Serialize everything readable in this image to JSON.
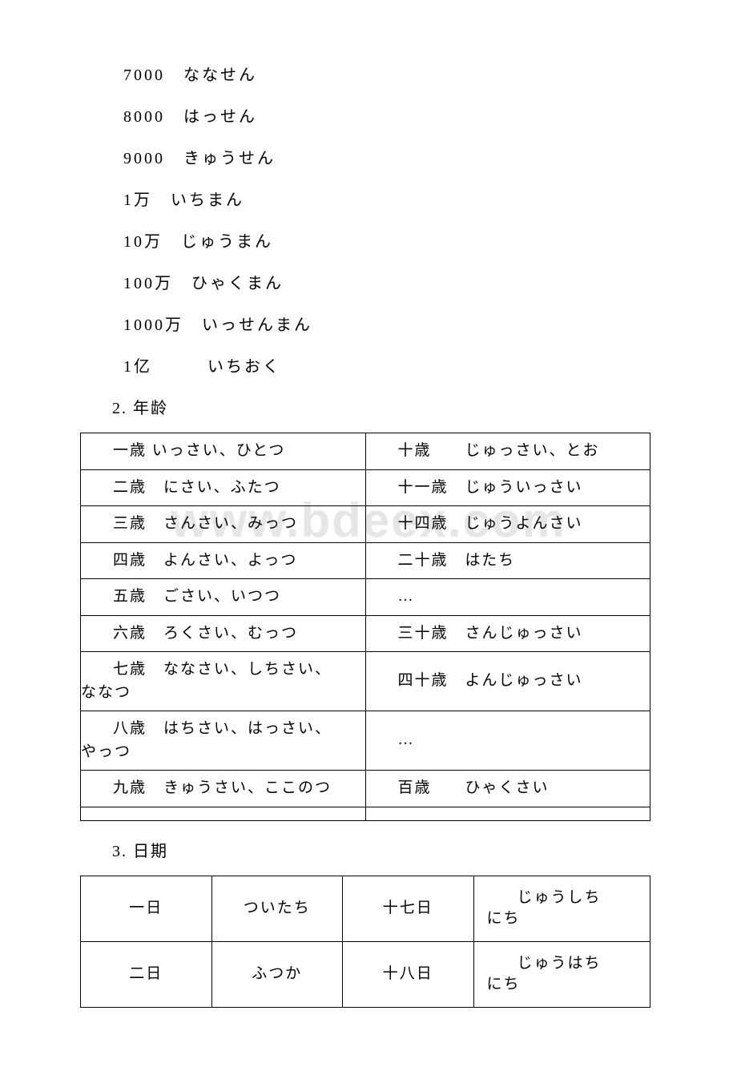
{
  "watermark": "www.bdeex.com",
  "numbers": [
    "7000　ななせん",
    "8000　はっせん",
    "9000　きゅうせん",
    "1万　いちまん",
    "10万　じゅうまん",
    "100万　ひゃくまん",
    "1000万　いっせんまん",
    "1亿　　　いちおく"
  ],
  "section2_heading": "2. 年龄",
  "age_rows": [
    {
      "left": "一歳 いっさい、ひとつ",
      "right": "十歳　　じゅっさい、とお"
    },
    {
      "left": "二歳　にさい、ふたつ",
      "right": "十一歳　じゅういっさい"
    },
    {
      "left": "三歳　さんさい、みっつ",
      "right": "十四歳　じゅうよんさい"
    },
    {
      "left": "四歳　よんさい、よっつ",
      "right": "二十歳　はたち"
    },
    {
      "left": "五歳　ごさい、いつつ",
      "right": "…"
    },
    {
      "left": "六歳　ろくさい、むっつ",
      "right": "三十歳　さんじゅっさい"
    },
    {
      "left_indent": "七歳　ななさい、しちさい、",
      "left_tail": "ななつ",
      "right": "四十歳　よんじゅっさい"
    },
    {
      "left_indent": "八歳　はちさい、はっさい、",
      "left_tail": "やっつ",
      "right": "…"
    },
    {
      "left": "九歳　きゅうさい、ここのつ",
      "right": "百歳　　ひゃくさい"
    },
    {
      "left": "",
      "right": ""
    }
  ],
  "section3_heading": "3. 日期",
  "date_rows": [
    {
      "c1": "一日",
      "c2": "ついたち",
      "c3": "十七日",
      "c4a": "じゅうしち",
      "c4b": "にち"
    },
    {
      "c1": "二日",
      "c2": "ふつか",
      "c3": "十八日",
      "c4a": "じゅうはち",
      "c4b": "にち"
    }
  ]
}
